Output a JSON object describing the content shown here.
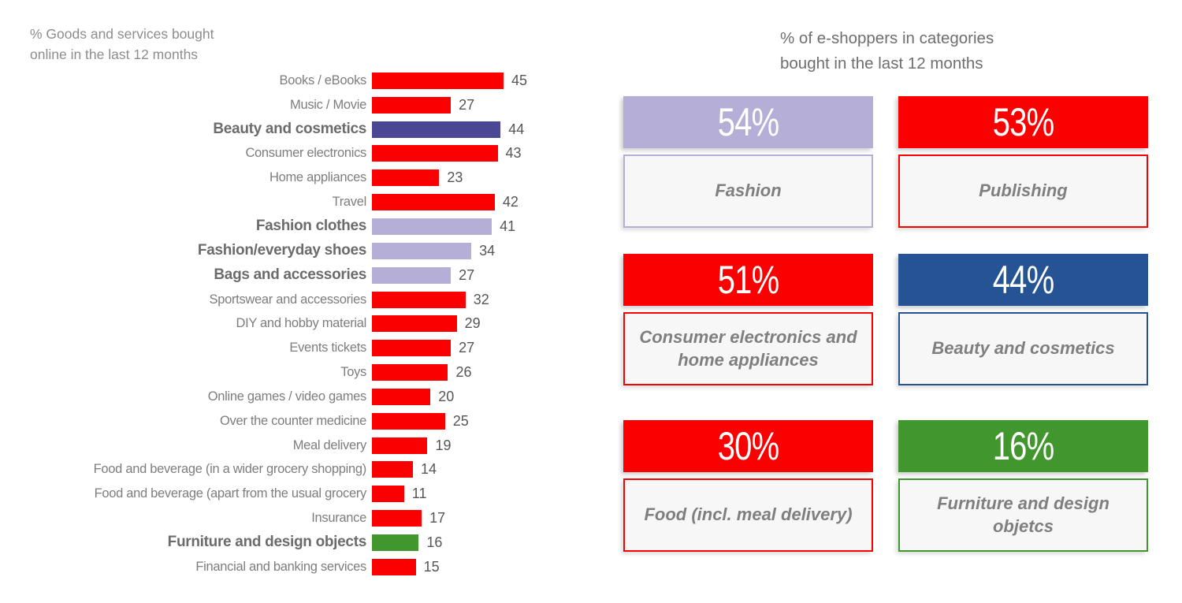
{
  "palette": {
    "red": "#fb0000",
    "lightPurple": "#b5afd8",
    "darkPurple": "#4c4794",
    "blue": "#265394",
    "green": "#42962e",
    "label_box_bg": "#f7f7f7",
    "percent_text": "#ffffff"
  },
  "left_chart": {
    "title_display": "% Goods and services bought\nonline in the last 12 months"
  },
  "right_panel": {
    "title_display": "% of e-shoppers in categories\nbought in the last 12 months"
  },
  "chart_data": [
    {
      "type": "bar",
      "orientation": "horizontal",
      "title": "% Goods and services bought online in the last 12 months",
      "categories": [
        "Books / eBooks",
        "Music / Movie",
        "Beauty and cosmetics",
        "Consumer electronics",
        "Home appliances",
        "Travel",
        "Fashion clothes",
        "Fashion/everyday shoes",
        "Bags and accessories",
        "Sportswear and accessories",
        "DIY and hobby material",
        "Events tickets",
        "Toys",
        "Online games / video games",
        "Over the counter medicine",
        "Meal delivery",
        "Food and beverage (in a wider grocery shopping)",
        "Food and beverage (apart from the usual grocery",
        "Insurance",
        "Furniture and design objects",
        "Financial and banking services"
      ],
      "values": [
        45,
        27,
        44,
        43,
        23,
        42,
        41,
        34,
        27,
        32,
        29,
        27,
        26,
        20,
        25,
        19,
        14,
        11,
        17,
        16,
        15
      ],
      "bar_colors": [
        "red",
        "red",
        "darkPurple",
        "red",
        "red",
        "red",
        "lightPurple",
        "lightPurple",
        "lightPurple",
        "red",
        "red",
        "red",
        "red",
        "red",
        "red",
        "red",
        "red",
        "red",
        "red",
        "green",
        "red"
      ],
      "bold_categories": [
        "Beauty and cosmetics",
        "Fashion clothes",
        "Fashion/everyday shoes",
        "Bags and accessories",
        "Furniture and design objects"
      ],
      "xlim": [
        0,
        50
      ],
      "grid": false,
      "value_labels": true,
      "legend": false
    },
    {
      "type": "bar",
      "subtype": "kpi-tiles",
      "title": "% of e-shoppers in categories bought in the last 12 months",
      "categories": [
        "Fashion",
        "Publishing",
        "Consumer electronics and home appliances",
        "Beauty and cosmetics",
        "Food (incl. meal delivery)",
        "Furniture and design objetcs"
      ],
      "values": [
        54,
        53,
        51,
        44,
        30,
        16
      ],
      "value_suffix": "%",
      "tile_colors": [
        "lightPurple",
        "red",
        "red",
        "blue",
        "red",
        "green"
      ],
      "layout": "2-columns-3-rows"
    }
  ]
}
